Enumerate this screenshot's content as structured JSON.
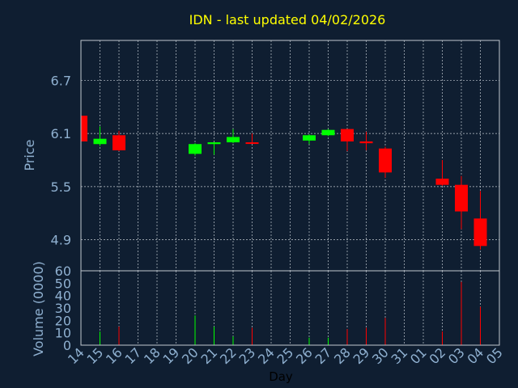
{
  "chart_data": [
    {
      "type": "candlestick",
      "title": "IDN - last updated 04/02/2026",
      "ylabel": "Price",
      "xlabel": "",
      "ylim": [
        4.55,
        7.15
      ],
      "y_ticks": [
        4.9,
        5.5,
        6.1,
        6.7
      ],
      "y_tick_labels": [
        "4.9",
        "5.5",
        "6.1",
        "6.7"
      ],
      "grid": true,
      "up_color": "#00ff00",
      "down_color": "#ff0000",
      "candles": [
        {
          "day": "14",
          "open": 6.3,
          "high": 6.3,
          "low": 6.0,
          "close": 6.01
        },
        {
          "day": "15",
          "open": 5.98,
          "high": 6.18,
          "low": 5.96,
          "close": 6.04
        },
        {
          "day": "16",
          "open": 6.08,
          "high": 6.13,
          "low": 5.9,
          "close": 5.91
        },
        {
          "day": "20",
          "open": 5.87,
          "high": 5.99,
          "low": 5.85,
          "close": 5.98
        },
        {
          "day": "21",
          "open": 5.98,
          "high": 6.0,
          "low": 5.86,
          "close": 6.0
        },
        {
          "day": "22",
          "open": 6.0,
          "high": 6.15,
          "low": 5.99,
          "close": 6.06
        },
        {
          "day": "23",
          "open": 6.0,
          "high": 6.1,
          "low": 5.99,
          "close": 5.99
        },
        {
          "day": "26",
          "open": 6.02,
          "high": 6.09,
          "low": 5.98,
          "close": 6.08
        },
        {
          "day": "27",
          "open": 6.08,
          "high": 6.15,
          "low": 6.07,
          "close": 6.14
        },
        {
          "day": "28",
          "open": 6.15,
          "high": 6.15,
          "low": 5.9,
          "close": 6.01
        },
        {
          "day": "29",
          "open": 6.01,
          "high": 6.12,
          "low": 5.91,
          "close": 5.99
        },
        {
          "day": "30",
          "open": 5.93,
          "high": 5.95,
          "low": 5.6,
          "close": 5.66
        },
        {
          "day": "02",
          "open": 5.59,
          "high": 5.8,
          "low": 5.51,
          "close": 5.52
        },
        {
          "day": "03",
          "open": 5.52,
          "high": 5.62,
          "low": 5.02,
          "close": 5.22
        },
        {
          "day": "04",
          "open": 5.14,
          "high": 5.45,
          "low": 4.79,
          "close": 4.83
        }
      ]
    },
    {
      "type": "bar",
      "ylabel": "Volume (0000)",
      "xlabel": "Day",
      "ylim": [
        0,
        60
      ],
      "y_ticks": [
        0,
        10,
        20,
        30,
        40,
        50,
        60
      ],
      "y_tick_labels": [
        "0",
        "10",
        "20",
        "30",
        "40",
        "50",
        "60"
      ],
      "categories": [
        "14",
        "15",
        "16",
        "17",
        "18",
        "19",
        "20",
        "21",
        "22",
        "23",
        "24",
        "25",
        "26",
        "27",
        "28",
        "29",
        "30",
        "31",
        "01",
        "02",
        "03",
        "04",
        "05"
      ],
      "volumes": [
        {
          "day": "15",
          "value": 11,
          "color": "#00ff00"
        },
        {
          "day": "16",
          "value": 15,
          "color": "#ff0000"
        },
        {
          "day": "20",
          "value": 24,
          "color": "#00ff00"
        },
        {
          "day": "21",
          "value": 15,
          "color": "#00ff00"
        },
        {
          "day": "22",
          "value": 7,
          "color": "#00ff00"
        },
        {
          "day": "23",
          "value": 14,
          "color": "#ff0000"
        },
        {
          "day": "26",
          "value": 6,
          "color": "#00ff00"
        },
        {
          "day": "27",
          "value": 6,
          "color": "#00ff00"
        },
        {
          "day": "28",
          "value": 13,
          "color": "#ff0000"
        },
        {
          "day": "29",
          "value": 14,
          "color": "#ff0000"
        },
        {
          "day": "30",
          "value": 22,
          "color": "#ff0000"
        },
        {
          "day": "02",
          "value": 11,
          "color": "#ff0000"
        },
        {
          "day": "03",
          "value": 51,
          "color": "#ff0000"
        },
        {
          "day": "04",
          "value": 31,
          "color": "#ff0000"
        }
      ]
    }
  ],
  "colors": {
    "background": "#0f1e31",
    "title": "#ffff00",
    "axis_label": "#8fb0d0",
    "tick_label": "#8fb0d0",
    "x_label": "#000000",
    "frame": "#c0c8d0",
    "grid": "#c0c8d0"
  }
}
